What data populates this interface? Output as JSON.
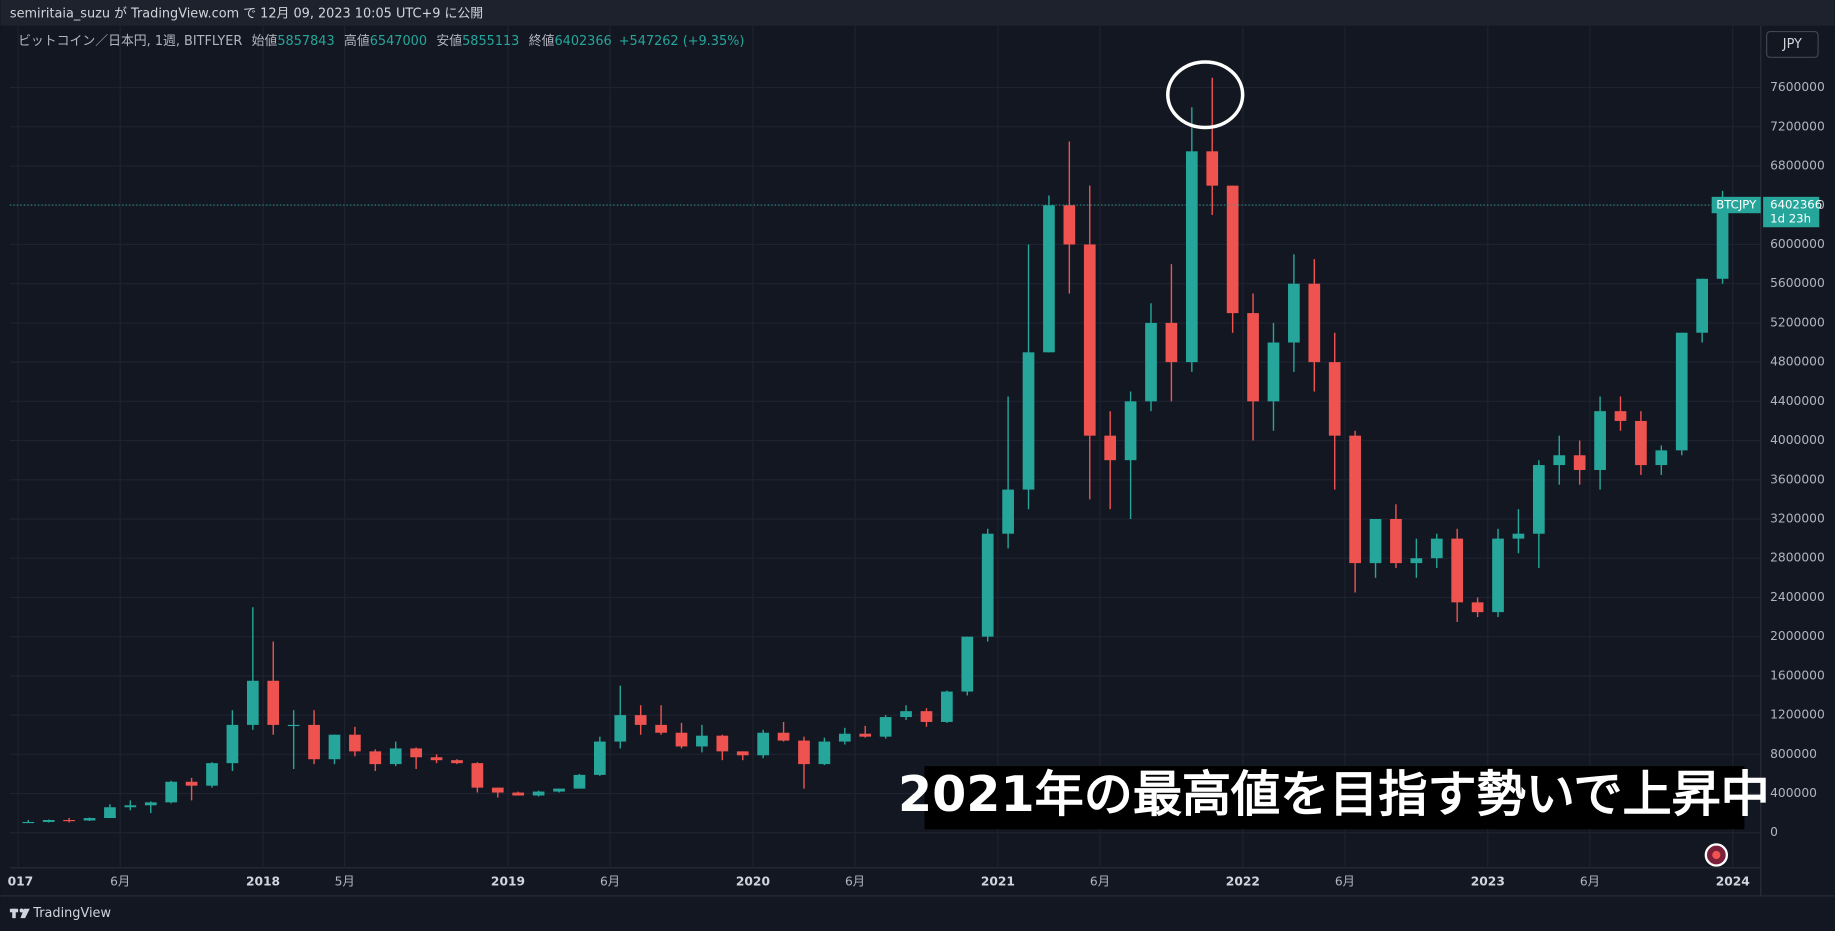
{
  "top_bar": {
    "text": "semiritaia_suzu が TradingView.com で 12月 09, 2023 10:05 UTC+9 に公開"
  },
  "currency_button": "JPY",
  "footer": {
    "brand": "TradingView"
  },
  "caption": "2021年の最高値を目指す勢いで上昇中",
  "chart_data": {
    "type": "candlestick",
    "legend": {
      "symbol": "ビットコイン／日本円, 1週, BITFLYER",
      "labels": [
        "始値",
        "高値",
        "安値",
        "終値"
      ],
      "values": [
        5857843,
        6547000,
        5855113,
        6402366
      ],
      "change": "+547262 (+9.35%)"
    },
    "last_price": {
      "name": "BTCJPY",
      "value": 6402366,
      "countdown": "1d 23h"
    },
    "up_color": "#26a69a",
    "down_color": "#ef5350",
    "grid": true,
    "ylim": [
      -358000,
      8231000
    ],
    "yticks": [
      0,
      400000,
      800000,
      1200000,
      1600000,
      2000000,
      2400000,
      2800000,
      3200000,
      3600000,
      4000000,
      4400000,
      4800000,
      5200000,
      5600000,
      6000000,
      6400000,
      6800000,
      7200000,
      7600000
    ],
    "xlim": [
      "2016-12",
      "2024-02"
    ],
    "xticks": [
      {
        "value": "2017-01",
        "label": "017"
      },
      {
        "value": "2017-06",
        "label": "6月"
      },
      {
        "value": "2018-01",
        "label": "2018"
      },
      {
        "value": "2018-05",
        "label": "5月"
      },
      {
        "value": "2019-01",
        "label": "2019"
      },
      {
        "value": "2019-06",
        "label": "6月"
      },
      {
        "value": "2020-01",
        "label": "2020"
      },
      {
        "value": "2020-06",
        "label": "6月"
      },
      {
        "value": "2021-01",
        "label": "2021"
      },
      {
        "value": "2021-06",
        "label": "6月"
      },
      {
        "value": "2022-01",
        "label": "2022"
      },
      {
        "value": "2022-06",
        "label": "6月"
      },
      {
        "value": "2023-01",
        "label": "2023"
      },
      {
        "value": "2023-06",
        "label": "6月"
      },
      {
        "value": "2024-01",
        "label": "2024"
      }
    ],
    "x": [
      "2017-01",
      "2017-02",
      "2017-03",
      "2017-04",
      "2017-05",
      "2017-06",
      "2017-07",
      "2017-08",
      "2017-09",
      "2017-10",
      "2017-11",
      "2017-12",
      "2018-01",
      "2018-02",
      "2018-03",
      "2018-04",
      "2018-05",
      "2018-06",
      "2018-07",
      "2018-08",
      "2018-09",
      "2018-10",
      "2018-11",
      "2018-12",
      "2019-01",
      "2019-02",
      "2019-03",
      "2019-04",
      "2019-05",
      "2019-06",
      "2019-07",
      "2019-08",
      "2019-09",
      "2019-10",
      "2019-11",
      "2019-12",
      "2020-01",
      "2020-02",
      "2020-03",
      "2020-04",
      "2020-05",
      "2020-06",
      "2020-07",
      "2020-08",
      "2020-09",
      "2020-10",
      "2020-11",
      "2020-12",
      "2021-01",
      "2021-02",
      "2021-03",
      "2021-04",
      "2021-05",
      "2021-06",
      "2021-07",
      "2021-08",
      "2021-09",
      "2021-10",
      "2021-11",
      "2021-12",
      "2022-01",
      "2022-02",
      "2022-03",
      "2022-04",
      "2022-05",
      "2022-06",
      "2022-07",
      "2022-08",
      "2022-09",
      "2022-10",
      "2022-11",
      "2022-12",
      "2023-01",
      "2023-02",
      "2023-03",
      "2023-04",
      "2023-05",
      "2023-06",
      "2023-07",
      "2023-08",
      "2023-09",
      "2023-10",
      "2023-11",
      "2023-12"
    ],
    "ohlc": [
      [
        110000,
        130000,
        100000,
        110000
      ],
      [
        110000,
        135000,
        105000,
        130000
      ],
      [
        130000,
        150000,
        105000,
        125000
      ],
      [
        125000,
        155000,
        120000,
        150000
      ],
      [
        150000,
        290000,
        150000,
        260000
      ],
      [
        260000,
        330000,
        230000,
        280000
      ],
      [
        280000,
        320000,
        200000,
        310000
      ],
      [
        310000,
        530000,
        300000,
        520000
      ],
      [
        520000,
        560000,
        330000,
        480000
      ],
      [
        480000,
        720000,
        460000,
        710000
      ],
      [
        710000,
        1250000,
        630000,
        1100000
      ],
      [
        1100000,
        2300000,
        1050000,
        1550000
      ],
      [
        1550000,
        1950000,
        1000000,
        1100000
      ],
      [
        1100000,
        1250000,
        650000,
        1100000
      ],
      [
        1100000,
        1250000,
        700000,
        750000
      ],
      [
        750000,
        1000000,
        700000,
        1000000
      ],
      [
        1000000,
        1080000,
        780000,
        830000
      ],
      [
        830000,
        850000,
        630000,
        700000
      ],
      [
        700000,
        930000,
        680000,
        860000
      ],
      [
        860000,
        870000,
        650000,
        770000
      ],
      [
        770000,
        800000,
        710000,
        740000
      ],
      [
        740000,
        750000,
        700000,
        710000
      ],
      [
        710000,
        720000,
        410000,
        460000
      ],
      [
        460000,
        460000,
        360000,
        410000
      ],
      [
        410000,
        420000,
        380000,
        380000
      ],
      [
        380000,
        430000,
        370000,
        420000
      ],
      [
        420000,
        450000,
        410000,
        450000
      ],
      [
        450000,
        600000,
        450000,
        590000
      ],
      [
        590000,
        980000,
        580000,
        930000
      ],
      [
        930000,
        1500000,
        860000,
        1200000
      ],
      [
        1200000,
        1300000,
        1000000,
        1100000
      ],
      [
        1100000,
        1300000,
        1000000,
        1020000
      ],
      [
        1020000,
        1120000,
        860000,
        880000
      ],
      [
        880000,
        1100000,
        820000,
        990000
      ],
      [
        990000,
        1000000,
        740000,
        830000
      ],
      [
        830000,
        830000,
        740000,
        790000
      ],
      [
        790000,
        1050000,
        760000,
        1020000
      ],
      [
        1020000,
        1130000,
        930000,
        940000
      ],
      [
        940000,
        980000,
        450000,
        700000
      ],
      [
        700000,
        970000,
        690000,
        930000
      ],
      [
        930000,
        1070000,
        900000,
        1010000
      ],
      [
        1010000,
        1090000,
        970000,
        980000
      ],
      [
        980000,
        1200000,
        960000,
        1180000
      ],
      [
        1180000,
        1300000,
        1150000,
        1240000
      ],
      [
        1240000,
        1270000,
        1080000,
        1130000
      ],
      [
        1130000,
        1450000,
        1120000,
        1440000
      ],
      [
        1440000,
        2000000,
        1400000,
        2000000
      ],
      [
        2000000,
        3100000,
        1950000,
        3050000
      ],
      [
        3050000,
        4450000,
        2900000,
        3500000
      ],
      [
        3500000,
        6000000,
        3300000,
        4900000
      ],
      [
        4900000,
        6500000,
        4900000,
        6400000
      ],
      [
        6400000,
        7050000,
        5500000,
        6000000
      ],
      [
        6000000,
        6600000,
        3400000,
        4050000
      ],
      [
        4050000,
        4300000,
        3300000,
        3800000
      ],
      [
        3800000,
        4500000,
        3200000,
        4400000
      ],
      [
        4400000,
        5400000,
        4300000,
        5200000
      ],
      [
        5200000,
        5800000,
        4400000,
        4800000
      ],
      [
        4800000,
        7400000,
        4700000,
        6950000
      ],
      [
        6950000,
        7700000,
        6300000,
        6600000
      ],
      [
        6600000,
        6600000,
        5100000,
        5300000
      ],
      [
        5300000,
        5500000,
        4000000,
        4400000
      ],
      [
        4400000,
        5200000,
        4100000,
        5000000
      ],
      [
        5000000,
        5900000,
        4700000,
        5600000
      ],
      [
        5600000,
        5850000,
        4500000,
        4800000
      ],
      [
        4800000,
        5100000,
        3500000,
        4050000
      ],
      [
        4050000,
        4100000,
        2450000,
        2750000
      ],
      [
        2750000,
        3200000,
        2600000,
        3200000
      ],
      [
        3200000,
        3350000,
        2700000,
        2750000
      ],
      [
        2750000,
        3000000,
        2600000,
        2800000
      ],
      [
        2800000,
        3050000,
        2700000,
        3000000
      ],
      [
        3000000,
        3100000,
        2150000,
        2350000
      ],
      [
        2350000,
        2400000,
        2200000,
        2250000
      ],
      [
        2250000,
        3100000,
        2200000,
        3000000
      ],
      [
        3000000,
        3300000,
        2850000,
        3050000
      ],
      [
        3050000,
        3800000,
        2700000,
        3750000
      ],
      [
        3750000,
        4050000,
        3550000,
        3850000
      ],
      [
        3850000,
        4000000,
        3550000,
        3700000
      ],
      [
        3700000,
        4450000,
        3500000,
        4300000
      ],
      [
        4300000,
        4450000,
        4100000,
        4200000
      ],
      [
        4200000,
        4300000,
        3650000,
        3750000
      ],
      [
        3750000,
        3950000,
        3650000,
        3900000
      ],
      [
        3900000,
        5100000,
        3850000,
        5100000
      ],
      [
        5100000,
        5650000,
        5000000,
        5650000
      ],
      [
        5650000,
        6547000,
        5600000,
        6402366
      ]
    ]
  }
}
